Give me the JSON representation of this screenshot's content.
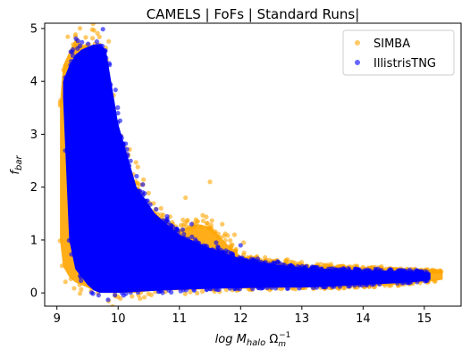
{
  "chart_data": {
    "type": "scatter",
    "title": "CAMELS | FoFs | Standard Runs|",
    "xlabel": {
      "main": "log M",
      "sub": "halo",
      "mid": " Ω",
      "omega_sub": "m",
      "omega_sup": "−1"
    },
    "ylabel": {
      "main": "f",
      "sub": "bar"
    },
    "xlim": [
      8.8,
      15.6
    ],
    "ylim": [
      -0.25,
      5.1
    ],
    "xticks": [
      9,
      10,
      11,
      12,
      13,
      14,
      15
    ],
    "yticks": [
      0,
      1,
      2,
      3,
      4,
      5
    ],
    "grid": false,
    "legend_position": "top-right",
    "series": [
      {
        "name": "SIMBA",
        "color": "#FFA500",
        "alpha": 0.6,
        "envelope": {
          "x": [
            9.05,
            9.1,
            9.2,
            9.3,
            9.4,
            9.6,
            9.8,
            10.0,
            10.3,
            10.6,
            11.0,
            11.3,
            11.5,
            11.8,
            12.0,
            12.5,
            13.0,
            13.5,
            14.0,
            14.5,
            15.0,
            15.3
          ],
          "upper": [
            3.6,
            4.3,
            4.55,
            4.8,
            4.7,
            4.65,
            4.5,
            3.0,
            2.0,
            1.5,
            1.2,
            1.3,
            1.25,
            0.9,
            0.7,
            0.6,
            0.5,
            0.48,
            0.45,
            0.43,
            0.42,
            0.4
          ],
          "lower": [
            1.0,
            0.5,
            0.3,
            0.2,
            0.15,
            0.05,
            0.0,
            0.0,
            0.0,
            0.05,
            0.05,
            0.06,
            0.08,
            0.08,
            0.08,
            0.09,
            0.1,
            0.1,
            0.12,
            0.15,
            0.2,
            0.25
          ]
        },
        "outliers": [
          [
            11.5,
            2.1
          ],
          [
            11.1,
            1.8
          ],
          [
            11.9,
            1.1
          ],
          [
            12.05,
            0.95
          ],
          [
            10.9,
            1.25
          ],
          [
            11.3,
            1.35
          ],
          [
            9.3,
            4.85
          ],
          [
            15.25,
            0.42
          ],
          [
            10.7,
            1.6
          ],
          [
            11.7,
            1.3
          ]
        ]
      },
      {
        "name": "IllistrisTNG",
        "color": "#0000FF",
        "alpha": 0.6,
        "envelope": {
          "x": [
            9.1,
            9.2,
            9.3,
            9.4,
            9.5,
            9.6,
            9.7,
            9.8,
            10.0,
            10.3,
            10.6,
            11.0,
            11.5,
            12.0,
            12.5,
            13.0,
            13.5,
            14.0,
            14.5,
            15.0,
            15.1
          ],
          "upper": [
            4.0,
            4.3,
            4.5,
            4.6,
            4.65,
            4.7,
            4.7,
            4.6,
            3.2,
            2.0,
            1.5,
            1.1,
            0.85,
            0.65,
            0.55,
            0.48,
            0.45,
            0.43,
            0.42,
            0.4,
            0.38
          ],
          "lower": [
            3.7,
            1.0,
            0.45,
            0.3,
            0.15,
            0.05,
            0.0,
            0.0,
            0.0,
            0.02,
            0.04,
            0.06,
            0.08,
            0.09,
            0.1,
            0.1,
            0.12,
            0.15,
            0.18,
            0.22,
            0.25
          ]
        },
        "outliers": [
          [
            10.4,
            1.9
          ],
          [
            11.2,
            1.3
          ],
          [
            12.0,
            0.9
          ],
          [
            11.6,
            0.95
          ],
          [
            10.8,
            1.4
          ]
        ]
      }
    ]
  }
}
